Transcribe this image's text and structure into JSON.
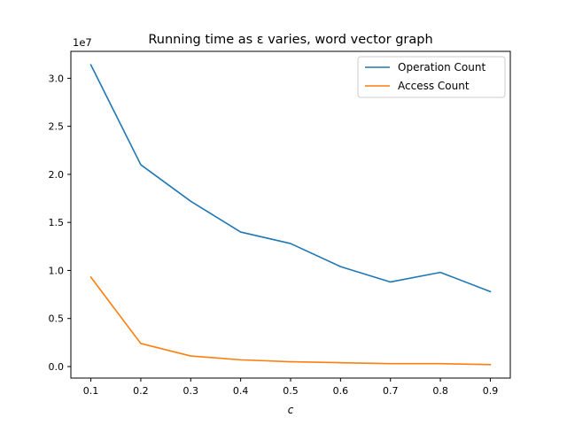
{
  "chart_data": {
    "type": "line",
    "title": "Running time as ε varies, word vector graph",
    "xlabel": "c",
    "ylabel": "",
    "y_scale_label": "1e7",
    "x": [
      0.1,
      0.2,
      0.3,
      0.4,
      0.5,
      0.6,
      0.7,
      0.8,
      0.9
    ],
    "x_ticks": [
      "0.1",
      "0.2",
      "0.3",
      "0.4",
      "0.5",
      "0.6",
      "0.7",
      "0.8",
      "0.9"
    ],
    "y_ticks": [
      "0.0",
      "0.5",
      "1.0",
      "1.5",
      "2.0",
      "2.5",
      "3.0"
    ],
    "y_tick_values": [
      0.0,
      0.5,
      1.0,
      1.5,
      2.0,
      2.5,
      3.0
    ],
    "xlim": [
      0.06,
      0.94
    ],
    "ylim": [
      -0.12,
      3.28
    ],
    "grid": false,
    "legend_position": "top-right",
    "series": [
      {
        "name": "Operation Count",
        "color": "#1f77b4",
        "values": [
          3.14,
          2.1,
          1.72,
          1.4,
          1.28,
          1.04,
          0.88,
          0.98,
          0.78
        ]
      },
      {
        "name": "Access Count",
        "color": "#ff7f0e",
        "values": [
          0.93,
          0.24,
          0.11,
          0.07,
          0.05,
          0.04,
          0.03,
          0.03,
          0.02
        ]
      }
    ]
  }
}
